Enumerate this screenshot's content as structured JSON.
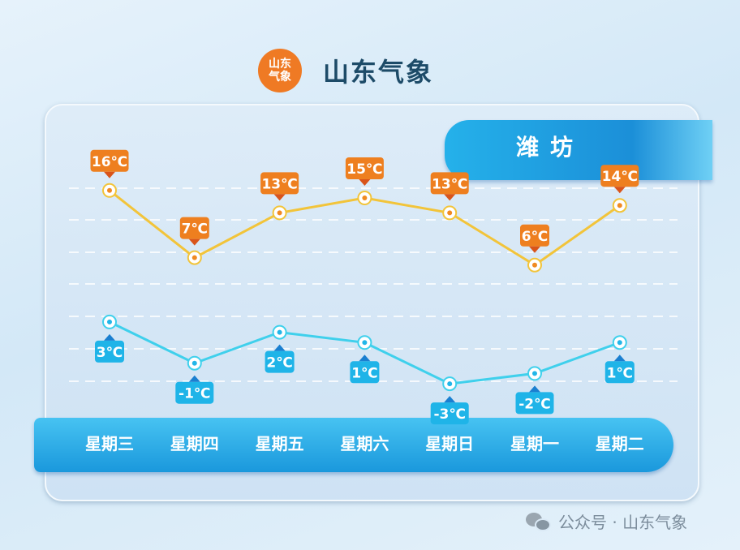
{
  "header": {
    "logo_text": "山东气象",
    "brand": "山东气象"
  },
  "city": "潍坊",
  "footer": {
    "text": "公众号 · 山东气象",
    "icon": "wechat-icon"
  },
  "colors": {
    "high": "#f2c43a",
    "high_label": "#ee7f1f",
    "low": "#3fd0ec",
    "low_label": "#1fb4e8"
  },
  "chart_data": {
    "type": "line",
    "categories": [
      "星期三",
      "星期四",
      "星期五",
      "星期六",
      "星期日",
      "星期一",
      "星期二"
    ],
    "unit": "℃",
    "series": [
      {
        "values": [
          16,
          7,
          13,
          15,
          13,
          6,
          14
        ],
        "labels": [
          "16℃",
          "7℃",
          "13℃",
          "15℃",
          "13℃",
          "6℃",
          "14℃"
        ]
      },
      {
        "values": [
          3,
          -1,
          2,
          1,
          -3,
          -2,
          1
        ],
        "labels": [
          "3℃",
          "-1℃",
          "2℃",
          "1℃",
          "-3℃",
          "-2℃",
          "1℃"
        ]
      }
    ],
    "grid": true
  }
}
